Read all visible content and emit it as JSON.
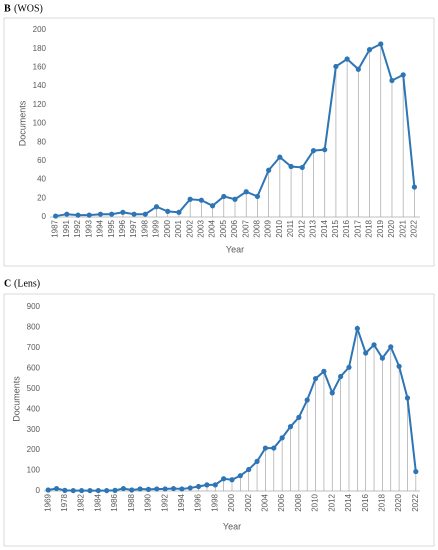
{
  "chart_data": [
    {
      "type": "line",
      "panel": "B",
      "title": "(WOS)",
      "x_label": "Year",
      "y_label": "Documents",
      "color": "#2e75b6",
      "drop_lines": true,
      "grid": false,
      "categories": [
        "1987",
        "1991",
        "1992",
        "1993",
        "1994",
        "1995",
        "1996",
        "1997",
        "1998",
        "1999",
        "2000",
        "2001",
        "2002",
        "2003",
        "2004",
        "2005",
        "2006",
        "2007",
        "2008",
        "2009",
        "2010",
        "2011",
        "2012",
        "2013",
        "2014",
        "2015",
        "2016",
        "2017",
        "2018",
        "2019",
        "2020",
        "2021",
        "2022"
      ],
      "values": [
        1,
        3,
        2,
        2,
        3,
        3,
        5,
        3,
        3,
        11,
        6,
        5,
        19,
        18,
        12,
        22,
        19,
        27,
        22,
        50,
        64,
        54,
        53,
        71,
        72,
        161,
        169,
        158,
        179,
        185,
        146,
        152,
        32
      ],
      "ylim": [
        0,
        200
      ],
      "yticks": [
        0,
        20,
        40,
        60,
        80,
        100,
        120,
        140,
        160,
        180,
        200
      ]
    },
    {
      "type": "line",
      "panel": "C",
      "title": "(Lens)",
      "x_label": "Year",
      "y_label": "Documents",
      "color": "#2e75b6",
      "drop_lines": true,
      "grid": false,
      "categories": [
        "1969",
        null,
        "1978",
        null,
        "1982",
        null,
        "1984",
        null,
        "1986",
        null,
        "1988",
        null,
        "1990",
        null,
        "1992",
        null,
        "1994",
        null,
        "1996",
        null,
        "1998",
        null,
        "2000",
        null,
        "2002",
        null,
        "2004",
        null,
        "2006",
        null,
        "2008",
        null,
        "2010",
        null,
        "2012",
        null,
        "2014",
        null,
        "2016",
        null,
        "2018",
        null,
        "2020",
        null,
        "2022"
      ],
      "values": [
        5,
        12,
        3,
        2,
        2,
        2,
        2,
        2,
        3,
        12,
        5,
        10,
        8,
        10,
        10,
        12,
        10,
        15,
        22,
        30,
        30,
        60,
        55,
        75,
        105,
        145,
        210,
        210,
        260,
        315,
        360,
        445,
        550,
        585,
        480,
        560,
        605,
        795,
        675,
        715,
        650,
        705,
        610,
        455,
        95
      ],
      "ylim": [
        0,
        900
      ],
      "yticks": [
        0,
        100,
        200,
        300,
        400,
        500,
        600,
        700,
        800,
        900
      ]
    }
  ]
}
